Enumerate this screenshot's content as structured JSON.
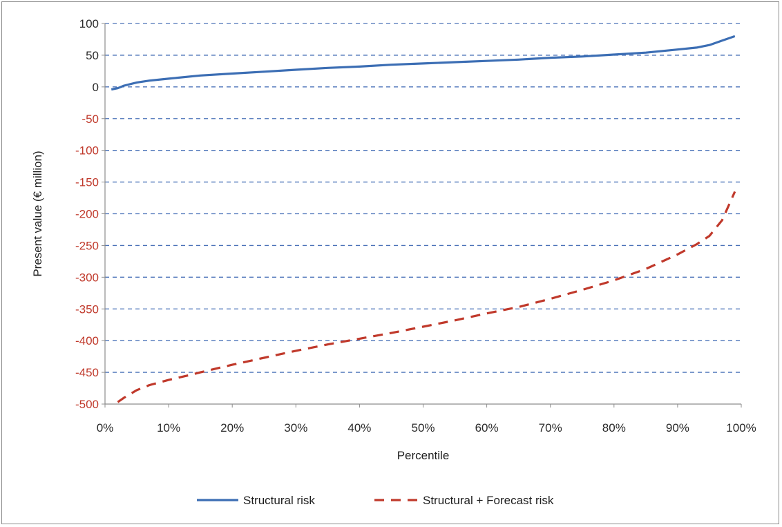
{
  "chart_data": {
    "type": "line",
    "title": "",
    "xlabel": "Percentile",
    "ylabel": "Present value (€ million)",
    "xlim": [
      0,
      100
    ],
    "ylim": [
      -500,
      100
    ],
    "x_ticks": [
      0,
      10,
      20,
      30,
      40,
      50,
      60,
      70,
      80,
      90,
      100
    ],
    "x_tick_labels": [
      "0%",
      "10%",
      "20%",
      "30%",
      "40%",
      "50%",
      "60%",
      "70%",
      "80%",
      "90%",
      "100%"
    ],
    "y_ticks": [
      100,
      50,
      0,
      -50,
      -100,
      -150,
      -200,
      -250,
      -300,
      -350,
      -400,
      -450,
      -500
    ],
    "y_tick_labels": [
      "100",
      "50",
      "0",
      "-50",
      "-100",
      "-150",
      "-200",
      "-250",
      "-300",
      "-350",
      "-400",
      "-450",
      "-500"
    ],
    "grid": "horizontal dashed",
    "legend_position": "bottom",
    "series": [
      {
        "name": "Structural risk",
        "style": "solid",
        "color": "#3c6eb4",
        "x": [
          1,
          2,
          3,
          5,
          7,
          10,
          15,
          20,
          25,
          30,
          35,
          40,
          45,
          50,
          55,
          60,
          65,
          70,
          75,
          80,
          85,
          90,
          93,
          95,
          97,
          99
        ],
        "y": [
          -4,
          -2,
          2,
          7,
          10,
          13,
          18,
          21,
          24,
          27,
          30,
          32,
          35,
          37,
          39,
          41,
          43,
          46,
          48,
          51,
          54,
          59,
          62,
          66,
          73,
          80
        ]
      },
      {
        "name": "Structural + Forecast risk",
        "style": "dashed",
        "color": "#c0392b",
        "x": [
          2,
          3,
          5,
          7,
          10,
          13,
          15,
          20,
          25,
          30,
          35,
          40,
          45,
          50,
          55,
          60,
          65,
          70,
          75,
          80,
          85,
          90,
          93,
          95,
          97,
          99
        ],
        "y": [
          -497,
          -490,
          -478,
          -470,
          -462,
          -455,
          -450,
          -438,
          -427,
          -416,
          -406,
          -397,
          -388,
          -378,
          -368,
          -357,
          -347,
          -334,
          -320,
          -305,
          -287,
          -264,
          -248,
          -235,
          -210,
          -165
        ]
      }
    ]
  }
}
